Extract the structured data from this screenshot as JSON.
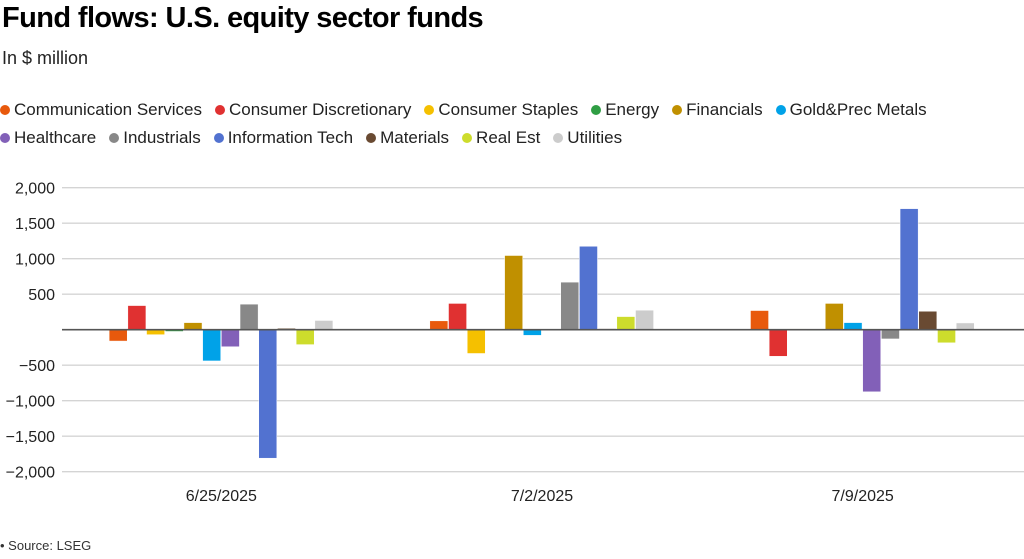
{
  "chart_data": {
    "type": "bar",
    "title": "Fund flows: U.S. equity sector funds",
    "subtitle": "In $ million",
    "xlabel": "",
    "ylabel": "",
    "ylim": [
      -2000,
      2000
    ],
    "yticks": [
      2000,
      1500,
      1000,
      500,
      -500,
      -1000,
      -1500,
      -2000
    ],
    "ytick_labels": [
      "2,000",
      "1,500",
      "1,000",
      "500",
      "−500",
      "−1,000",
      "−1,500",
      "−2,000"
    ],
    "grid": true,
    "legend_position": "top",
    "categories": [
      "6/25/2025",
      "7/2/2025",
      "7/9/2025"
    ],
    "series": [
      {
        "name": "Communication Services",
        "color": "#e8590c",
        "values": [
          -160,
          125,
          270
        ]
      },
      {
        "name": "Consumer Discretionary",
        "color": "#e03131",
        "values": [
          340,
          370,
          -375
        ]
      },
      {
        "name": "Consumer Staples",
        "color": "#f5c000",
        "values": [
          -70,
          -335,
          10
        ]
      },
      {
        "name": "Energy",
        "color": "#2f9e44",
        "values": [
          -25,
          -5,
          -15
        ]
      },
      {
        "name": "Financials",
        "color": "#c09000",
        "values": [
          100,
          1045,
          370
        ]
      },
      {
        "name": "Gold&Prec Metals",
        "color": "#00a2e8",
        "values": [
          -440,
          -80,
          100
        ]
      },
      {
        "name": "Healthcare",
        "color": "#8260b8",
        "values": [
          -240,
          0,
          -875
        ]
      },
      {
        "name": "Industrials",
        "color": "#888888",
        "values": [
          360,
          670,
          -130
        ]
      },
      {
        "name": "Information Tech",
        "color": "#5272d0",
        "values": [
          -1810,
          1175,
          1705
        ]
      },
      {
        "name": "Materials",
        "color": "#694a32",
        "values": [
          20,
          15,
          260
        ]
      },
      {
        "name": "Real Est",
        "color": "#cddc2c",
        "values": [
          -210,
          185,
          -185
        ]
      },
      {
        "name": "Utilities",
        "color": "#cccccc",
        "values": [
          130,
          275,
          95
        ]
      }
    ],
    "source": "• Source: LSEG"
  }
}
